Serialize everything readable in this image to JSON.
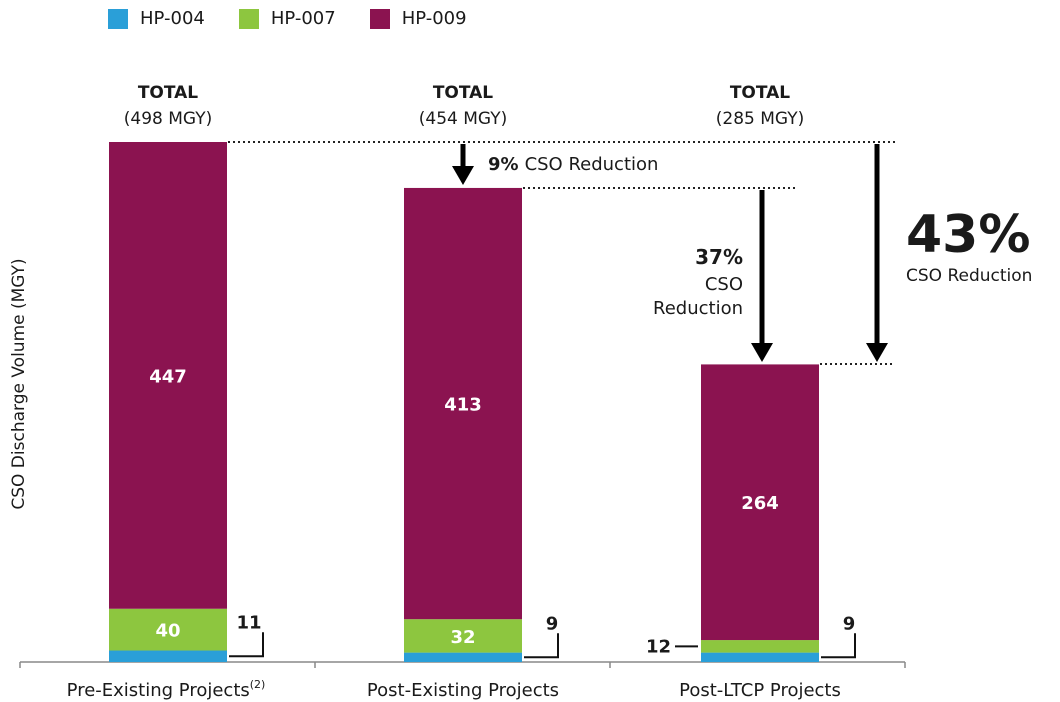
{
  "chart_data": {
    "type": "bar",
    "stacked": true,
    "ylabel": "CSO Discharge Volume (MGY)",
    "categories": [
      "Pre-Existing Projects",
      "Post-Existing Projects",
      "Post-LTCP Projects"
    ],
    "category_superscripts": [
      "(2)",
      "",
      ""
    ],
    "series": [
      {
        "name": "HP-004",
        "color": "#2a9fd8",
        "values": [
          11,
          9,
          9
        ]
      },
      {
        "name": "HP-007",
        "color": "#8dc63f",
        "values": [
          40,
          32,
          12
        ]
      },
      {
        "name": "HP-009",
        "color": "#8b1350",
        "values": [
          447,
          413,
          264
        ]
      }
    ],
    "data_labels": {
      "HP-004": [
        "11",
        "9",
        "9"
      ],
      "HP-007": [
        "40",
        "32",
        "12"
      ],
      "HP-009": [
        "447",
        "413",
        "264"
      ]
    },
    "totals": [
      {
        "title": "TOTAL",
        "value": "(498 MGY)"
      },
      {
        "title": "TOTAL",
        "value": "(454 MGY)"
      },
      {
        "title": "TOTAL",
        "value": "(285 MGY)"
      }
    ],
    "annotations": {
      "reduction_9": {
        "pct": "9%",
        "text": "CSO Reduction"
      },
      "reduction_37": {
        "pct": "37%",
        "line1": "CSO",
        "line2": "Reduction"
      },
      "reduction_43": {
        "pct": "43%",
        "text": "CSO Reduction"
      }
    },
    "ylim": [
      0,
      498
    ],
    "legend_position": "top-left",
    "grid": false
  }
}
